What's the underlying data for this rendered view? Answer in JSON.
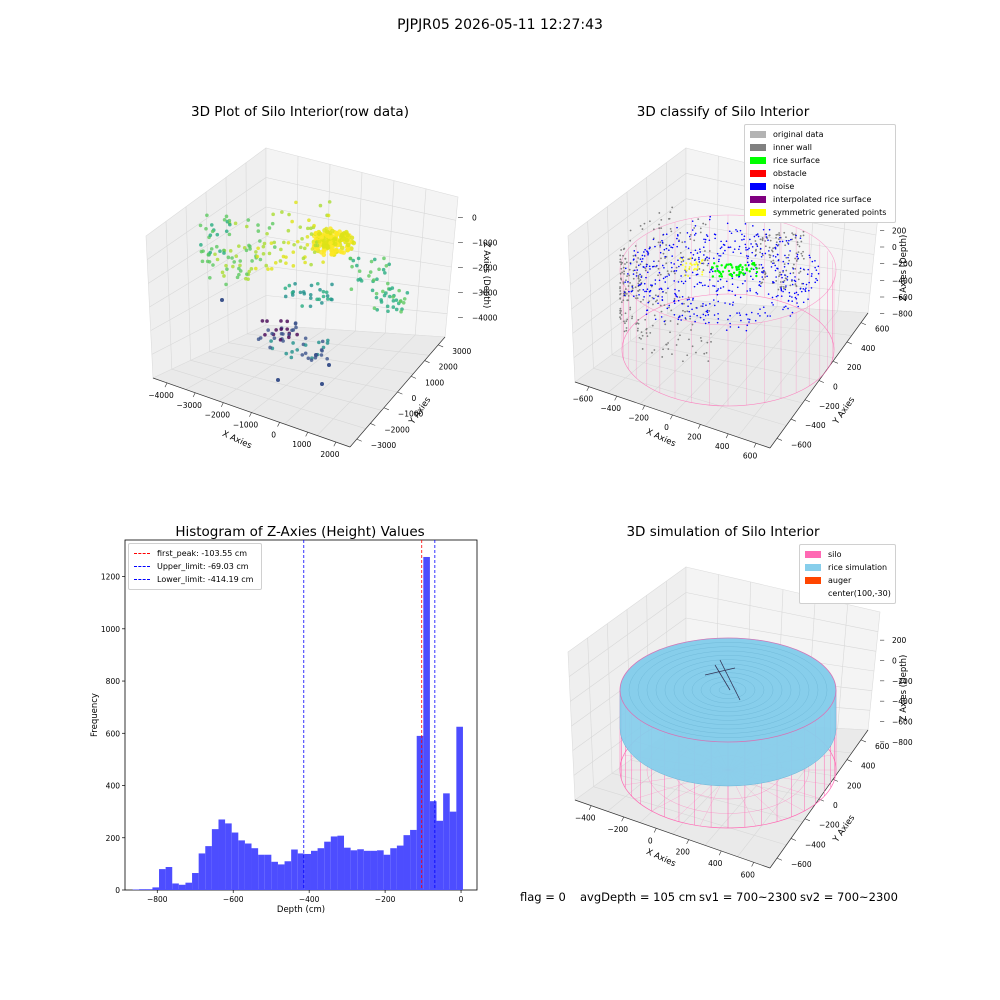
{
  "suptitle": "PJPJR05 2026-05-11 12:27:43",
  "footer": {
    "flag": "flag = 0",
    "avg": "avgDepth = 105 cm",
    "sv1": "sv1 = 700~2300",
    "sv2": "sv2 = 700~2300"
  },
  "colors": {
    "hist_bar": "#4d4dff",
    "first_peak": "#ff0000",
    "limit_line": "#0000ff",
    "pane": "#efefef",
    "silo": "#ff69b4",
    "rice_sim": "#87ceeb",
    "auger": "#ff4500",
    "rice_surface": "#00ff00",
    "noise": "#0000ff",
    "inner_wall": "#808080",
    "original": "#b3b3b3",
    "interpolated": "#800080",
    "symmetric": "#ffff00"
  },
  "chart_data": [
    {
      "type": "scatter3d",
      "title": "3D Plot of Silo Interior(row data)",
      "xlabel": "X Axies",
      "ylabel": "Y Axies",
      "zlabel": "Z Axies (Depth)",
      "x_ticks": [
        "−4000",
        "−3000",
        "−2000",
        "−1000",
        "0",
        "1000",
        "2000"
      ],
      "y_ticks": [
        "−3000",
        "−2000",
        "−1000",
        "0",
        "1000",
        "2000",
        "3000"
      ],
      "z_ticks": [
        "0",
        "−1000",
        "−2000",
        "−3000",
        "−4000"
      ],
      "colormap": "viridis"
    },
    {
      "type": "scatter3d",
      "title": "3D classify of Silo Interior",
      "xlabel": "X Axies",
      "ylabel": "Y Axies",
      "zlabel": "Z Axies (Depth)",
      "x_ticks": [
        "−600",
        "−400",
        "−200",
        "0",
        "200",
        "400",
        "600"
      ],
      "y_ticks": [
        "−600",
        "−400",
        "−200",
        "0",
        "200",
        "400",
        "600"
      ],
      "z_ticks": [
        "200",
        "0",
        "−200",
        "−400",
        "−600",
        "−800"
      ],
      "z_top_partial": "00",
      "legend": [
        {
          "label": "original data",
          "color": "#b3b3b3"
        },
        {
          "label": "inner wall",
          "color": "#808080"
        },
        {
          "label": "rice surface",
          "color": "#00ff00"
        },
        {
          "label": "obstacle",
          "color": "#ff0000"
        },
        {
          "label": "noise",
          "color": "#0000ff"
        },
        {
          "label": "interpolated rice surface",
          "color": "#800080"
        },
        {
          "label": "symmetric generated points",
          "color": "#ffff00"
        }
      ]
    },
    {
      "type": "bar",
      "title": "Histogram of Z-Axies (Height) Values",
      "xlabel": "Depth (cm)",
      "ylabel": "Frequency",
      "xlim": [
        -885,
        42
      ],
      "ylim": [
        0,
        1340
      ],
      "x_ticks": [
        -800,
        -600,
        -400,
        -200,
        0
      ],
      "x_tick_labels": [
        "−800",
        "−600",
        "−400",
        "−200",
        "0"
      ],
      "y_ticks": [
        0,
        200,
        400,
        600,
        800,
        1000,
        1200
      ],
      "bin_start": -865,
      "bin_width": 17.4,
      "values": [
        2,
        3,
        3,
        10,
        80,
        88,
        25,
        20,
        28,
        65,
        140,
        168,
        233,
        270,
        255,
        220,
        190,
        178,
        160,
        135,
        135,
        108,
        98,
        110,
        155,
        140,
        138,
        150,
        160,
        185,
        205,
        208,
        162,
        152,
        156,
        150,
        150,
        152,
        135,
        160,
        170,
        210,
        230,
        590,
        1275,
        340,
        265,
        370,
        300,
        625
      ],
      "vlines": [
        {
          "name": "first_peak: -103.55 cm",
          "x": -103.55,
          "color": "#ff0000"
        },
        {
          "name": "Upper_limit: -69.03 cm",
          "x": -69.03,
          "color": "#0000ff"
        },
        {
          "name": "Lower_limit: -414.19 cm",
          "x": -414.19,
          "color": "#0000ff"
        }
      ]
    },
    {
      "type": "surface3d",
      "title": "3D simulation of Silo Interior",
      "xlabel": "X Axies",
      "ylabel": "Y Axies",
      "zlabel": "Z Axies (Depth)",
      "x_ticks": [
        "−400",
        "−200",
        "0",
        "200",
        "400",
        "600"
      ],
      "y_ticks": [
        "−600",
        "−400",
        "−200",
        "0",
        "200",
        "400",
        "600"
      ],
      "z_ticks": [
        "200",
        "0",
        "−200",
        "−400",
        "−600",
        "−800"
      ],
      "legend": [
        {
          "label": "silo",
          "color": "#ff69b4"
        },
        {
          "label": "rice simulation",
          "color": "#87ceeb"
        },
        {
          "label": "auger",
          "color": "#ff4500"
        },
        {
          "label": "center(100,-30)",
          "color": ""
        }
      ]
    }
  ]
}
